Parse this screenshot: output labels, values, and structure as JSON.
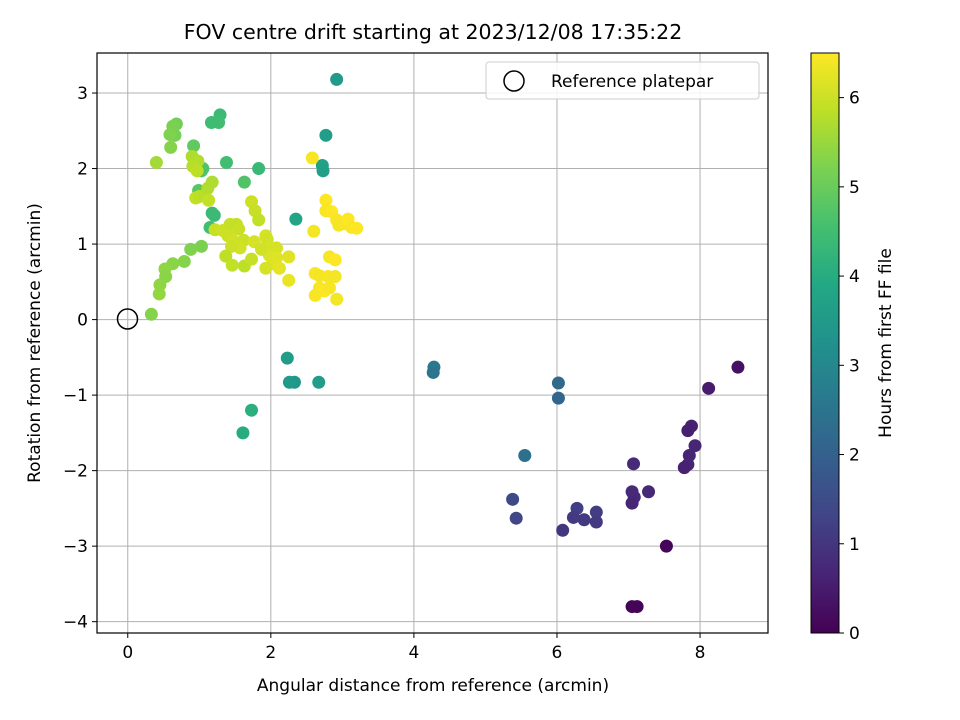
{
  "chart_data": {
    "type": "scatter",
    "title": "FOV centre drift starting at 2023/12/08 17:35:22",
    "xlabel": "Angular distance from reference (arcmin)",
    "ylabel": "Rotation from reference (arcmin)",
    "xlim": [
      -0.43,
      8.95
    ],
    "ylim": [
      -4.15,
      3.53
    ],
    "xticks": [
      0,
      2,
      4,
      6,
      8
    ],
    "yticks": [
      -4,
      -3,
      -2,
      -1,
      0,
      1,
      2,
      3
    ],
    "grid": true,
    "legend": {
      "placement": "top-right",
      "entries": [
        "Reference platepar"
      ]
    },
    "colorbar": {
      "label": "Hours from first FF file",
      "range": [
        0,
        6.5
      ],
      "ticks": [
        0,
        1,
        2,
        3,
        4,
        5,
        6
      ],
      "colormap": "viridis"
    },
    "reference_point": {
      "x": 0,
      "y": 0
    },
    "points": [
      [
        8.53,
        -0.63,
        0.3
      ],
      [
        8.12,
        -0.91,
        0.5
      ],
      [
        7.88,
        -1.41,
        0.6
      ],
      [
        7.83,
        -1.47,
        0.55
      ],
      [
        7.93,
        -1.67,
        0.7
      ],
      [
        7.85,
        -1.8,
        0.65
      ],
      [
        7.83,
        -1.92,
        0.7
      ],
      [
        7.78,
        -1.96,
        0.6
      ],
      [
        7.53,
        -3.0,
        0.1
      ],
      [
        7.28,
        -2.28,
        0.75
      ],
      [
        7.07,
        -1.91,
        0.8
      ],
      [
        7.05,
        -2.28,
        0.8
      ],
      [
        7.08,
        -2.35,
        0.75
      ],
      [
        7.05,
        -2.43,
        0.7
      ],
      [
        7.05,
        -3.8,
        0.05
      ],
      [
        7.12,
        -3.8,
        0.05
      ],
      [
        6.55,
        -2.55,
        1.15
      ],
      [
        6.55,
        -2.68,
        1.1
      ],
      [
        6.38,
        -2.65,
        1.05
      ],
      [
        6.28,
        -2.5,
        1.2
      ],
      [
        6.23,
        -2.62,
        1.1
      ],
      [
        6.08,
        -2.79,
        1.0
      ],
      [
        6.02,
        -0.84,
        2.2
      ],
      [
        6.02,
        -1.04,
        2.1
      ],
      [
        5.55,
        -1.8,
        2.4
      ],
      [
        5.43,
        -2.63,
        1.35
      ],
      [
        5.38,
        -2.38,
        1.45
      ],
      [
        4.28,
        -0.63,
        2.6
      ],
      [
        4.27,
        -0.7,
        2.55
      ],
      [
        2.92,
        3.18,
        3.5
      ],
      [
        2.77,
        2.44,
        3.6
      ],
      [
        2.72,
        2.04,
        3.7
      ],
      [
        2.73,
        1.97,
        3.65
      ],
      [
        2.35,
        1.33,
        3.8
      ],
      [
        2.67,
        -0.83,
        3.6
      ],
      [
        2.33,
        -0.83,
        3.4
      ],
      [
        2.26,
        -0.83,
        3.5
      ],
      [
        2.23,
        -0.51,
        3.55
      ],
      [
        1.73,
        -1.2,
        4.1
      ],
      [
        1.61,
        -1.5,
        4.0
      ],
      [
        1.83,
        2.0,
        4.35
      ],
      [
        1.63,
        1.82,
        4.7
      ],
      [
        1.38,
        2.08,
        4.5
      ],
      [
        1.29,
        2.71,
        4.4
      ],
      [
        1.27,
        2.61,
        4.5
      ],
      [
        1.17,
        2.61,
        4.45
      ],
      [
        1.18,
        1.41,
        4.35
      ],
      [
        1.21,
        1.38,
        4.4
      ],
      [
        1.15,
        1.22,
        4.5
      ],
      [
        0.99,
        1.71,
        4.8
      ],
      [
        1.03,
        1.97,
        4.6
      ],
      [
        1.05,
        2.0,
        4.7
      ],
      [
        0.92,
        2.3,
        4.9
      ],
      [
        0.68,
        2.59,
        5.1
      ],
      [
        0.63,
        2.56,
        5.2
      ],
      [
        0.66,
        2.44,
        5.15
      ],
      [
        0.59,
        2.45,
        5.25
      ],
      [
        0.6,
        2.28,
        5.3
      ],
      [
        0.4,
        2.08,
        5.6
      ],
      [
        0.9,
        2.16,
        5.7
      ],
      [
        0.98,
        2.1,
        5.75
      ],
      [
        0.91,
        2.03,
        5.8
      ],
      [
        0.97,
        1.97,
        5.85
      ],
      [
        0.95,
        1.61,
        5.9
      ],
      [
        1.0,
        1.63,
        5.85
      ],
      [
        1.08,
        1.65,
        5.8
      ],
      [
        1.12,
        1.74,
        5.75
      ],
      [
        1.18,
        1.82,
        5.7
      ],
      [
        1.13,
        1.58,
        5.9
      ],
      [
        1.22,
        1.19,
        5.95
      ],
      [
        1.33,
        1.18,
        6.0
      ],
      [
        1.43,
        1.26,
        5.95
      ],
      [
        1.4,
        1.11,
        6.0
      ],
      [
        1.47,
        1.05,
        6.05
      ],
      [
        1.52,
        1.26,
        5.9
      ],
      [
        1.55,
        1.2,
        5.95
      ],
      [
        1.62,
        1.05,
        6.0
      ],
      [
        1.57,
        0.95,
        6.05
      ],
      [
        1.45,
        0.97,
        6.0
      ],
      [
        1.37,
        0.84,
        5.85
      ],
      [
        1.46,
        0.72,
        5.9
      ],
      [
        1.63,
        0.71,
        5.85
      ],
      [
        1.73,
        0.8,
        5.95
      ],
      [
        1.77,
        1.03,
        6.1
      ],
      [
        1.93,
        1.11,
        6.1
      ],
      [
        1.95,
        1.06,
        6.05
      ],
      [
        1.98,
        0.96,
        6.1
      ],
      [
        1.98,
        0.85,
        6.15
      ],
      [
        2.08,
        0.95,
        6.1
      ],
      [
        2.08,
        0.82,
        6.2
      ],
      [
        2.03,
        0.74,
        6.2
      ],
      [
        1.93,
        0.68,
        6.1
      ],
      [
        2.12,
        0.68,
        6.25
      ],
      [
        2.25,
        0.83,
        6.2
      ],
      [
        2.25,
        0.52,
        6.3
      ],
      [
        1.87,
        0.93,
        6.05
      ],
      [
        1.73,
        1.56,
        6.0
      ],
      [
        1.78,
        1.44,
        5.95
      ],
      [
        1.83,
        1.32,
        5.9
      ],
      [
        1.03,
        0.97,
        5.2
      ],
      [
        0.88,
        0.93,
        5.25
      ],
      [
        0.79,
        0.77,
        5.3
      ],
      [
        0.63,
        0.74,
        5.35
      ],
      [
        0.52,
        0.67,
        5.4
      ],
      [
        0.53,
        0.57,
        5.35
      ],
      [
        0.45,
        0.46,
        5.4
      ],
      [
        0.44,
        0.34,
        5.45
      ],
      [
        0.33,
        0.07,
        5.3
      ],
      [
        2.58,
        2.14,
        6.45
      ],
      [
        2.6,
        1.17,
        6.4
      ],
      [
        2.77,
        1.58,
        6.5
      ],
      [
        2.77,
        1.44,
        6.45
      ],
      [
        2.85,
        1.43,
        6.5
      ],
      [
        2.92,
        1.32,
        6.45
      ],
      [
        2.95,
        1.25,
        6.4
      ],
      [
        3.03,
        1.27,
        6.45
      ],
      [
        3.08,
        1.33,
        6.5
      ],
      [
        3.13,
        1.22,
        6.45
      ],
      [
        3.2,
        1.21,
        6.5
      ],
      [
        2.62,
        0.61,
        6.45
      ],
      [
        2.68,
        0.58,
        6.4
      ],
      [
        2.82,
        0.83,
        6.45
      ],
      [
        2.9,
        0.79,
        6.5
      ],
      [
        2.8,
        0.57,
        6.45
      ],
      [
        2.9,
        0.57,
        6.4
      ],
      [
        2.68,
        0.42,
        6.45
      ],
      [
        2.75,
        0.38,
        6.5
      ],
      [
        2.82,
        0.42,
        6.45
      ],
      [
        2.92,
        0.27,
        6.4
      ],
      [
        2.62,
        0.32,
        6.45
      ]
    ]
  }
}
